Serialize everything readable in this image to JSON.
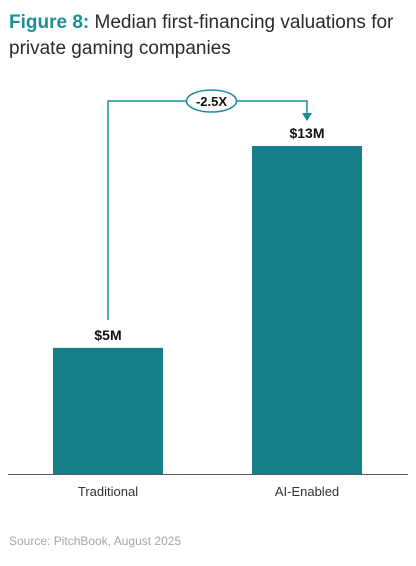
{
  "title": {
    "figure_label": "Figure 8:",
    "text": " Median first-financing valuations for private gaming companies"
  },
  "source": "Source: PitchBook, August 2025",
  "colors": {
    "bar": "#167f89",
    "accent": "#1a8f9a",
    "axis": "#5a5a5a",
    "text": "#111111"
  },
  "chart_data": {
    "type": "bar",
    "categories": [
      "Traditional",
      "AI-Enabled"
    ],
    "values": [
      5,
      13
    ],
    "value_labels": [
      "$5M",
      "$13M"
    ],
    "annotation": "-2.5X",
    "ylim": [
      0,
      13
    ],
    "grid": false,
    "legend": "none"
  }
}
